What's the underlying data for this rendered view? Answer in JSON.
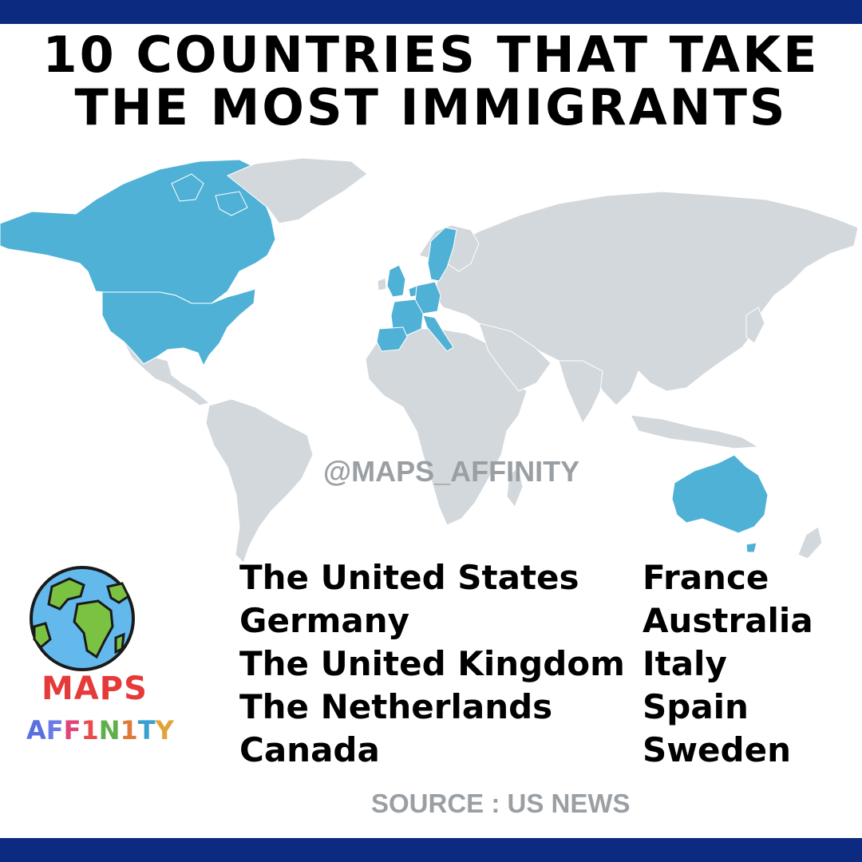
{
  "title": {
    "line1": "10 COUNTRIES THAT TAKE",
    "line2": "THE MOST IMMIGRANTS"
  },
  "watermark": "@MAPS_AFFINITY",
  "countries": {
    "left": [
      "The United States",
      "Germany",
      "The United Kingdom",
      "The Netherlands",
      "Canada"
    ],
    "right": [
      "France",
      "Australia",
      "Italy",
      "Spain",
      "Sweden"
    ]
  },
  "highlighted_countries": [
    "United States",
    "Canada",
    "United Kingdom",
    "Netherlands",
    "Germany",
    "France",
    "Italy",
    "Spain",
    "Sweden",
    "Australia"
  ],
  "source": "SOURCE : US NEWS",
  "logo": {
    "line1": "MAPS",
    "line2": "AFF1N1TY",
    "icon": "globe-icon"
  },
  "colors": {
    "frame_bar": "#0b2a80",
    "highlight": "#4fb1d6",
    "land": "#d3d8dc",
    "text": "#000000",
    "muted_text": "#9a9fa4",
    "logo_maps_red": "#e53a3a",
    "logo_ocean": "#63b9ec",
    "logo_land": "#7cc242"
  }
}
